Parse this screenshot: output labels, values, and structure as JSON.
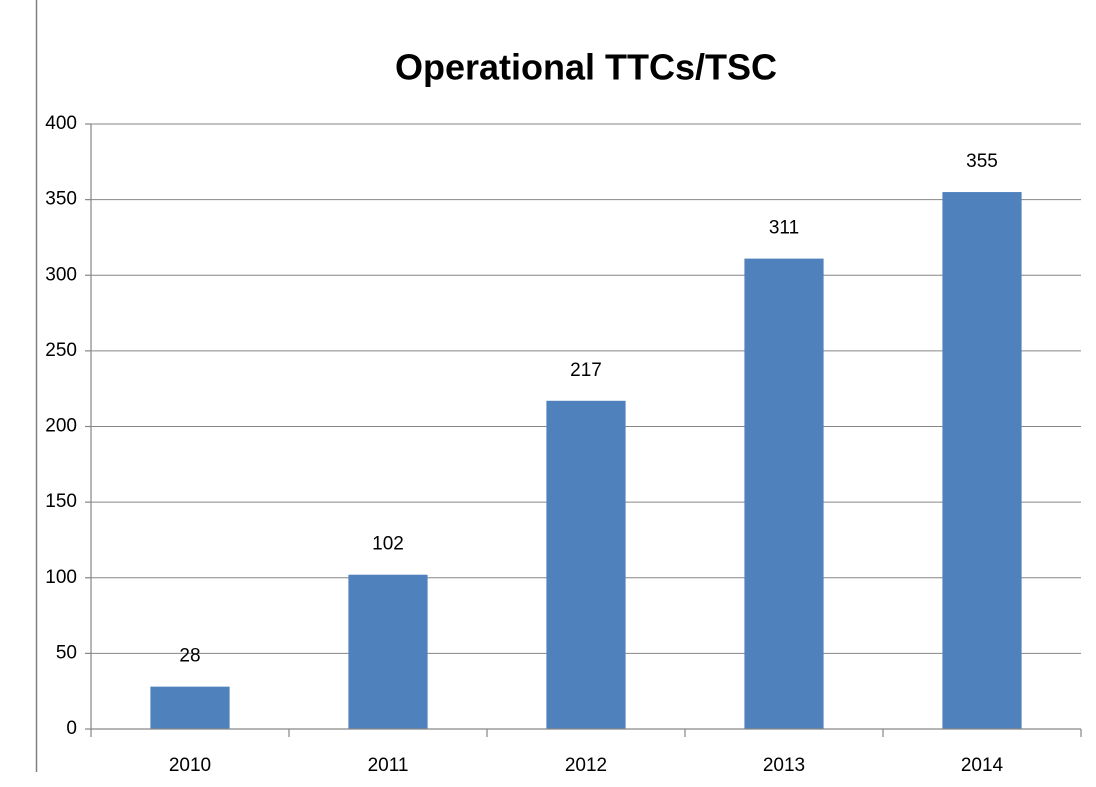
{
  "chart_data": {
    "type": "bar",
    "title": "Operational TTCs/TSC",
    "categories": [
      "2010",
      "2011",
      "2012",
      "2013",
      "2014"
    ],
    "values": [
      28,
      102,
      217,
      311,
      355
    ],
    "color": "#4f81bd",
    "ylim": [
      0,
      400
    ],
    "yticks": [
      0,
      50,
      100,
      150,
      200,
      250,
      300,
      350,
      400
    ],
    "grid": true,
    "data_labels": true
  }
}
